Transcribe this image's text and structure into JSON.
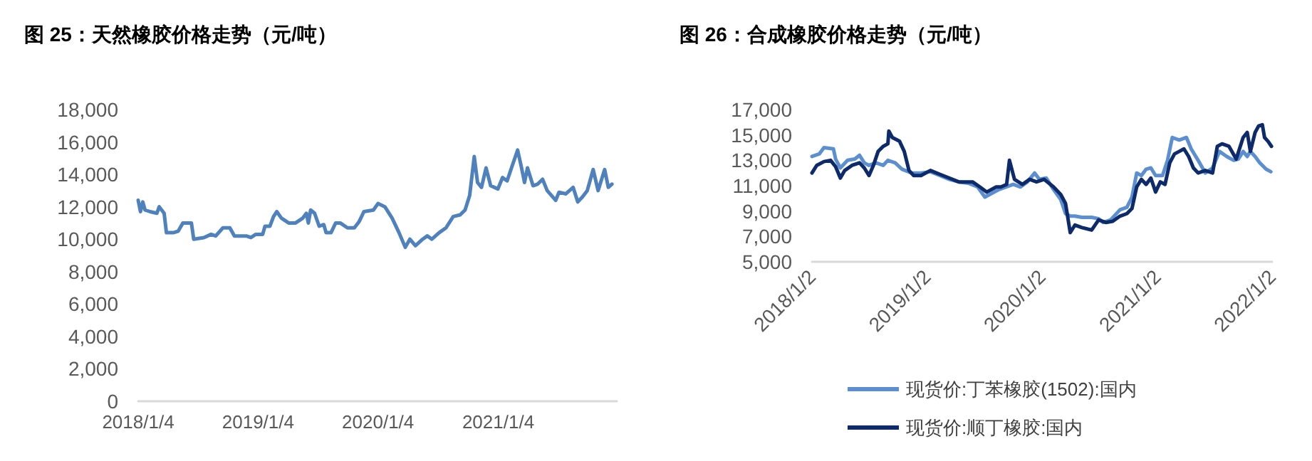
{
  "chart_data": [
    {
      "type": "line",
      "title": "图 25：天然橡胶价格走势（元/吨）",
      "marker": "none",
      "xlim": [
        "2018-01-04",
        "2021-12-31"
      ],
      "xticks": [
        {
          "value": "2018-01-04",
          "label": "2018/1/4"
        },
        {
          "value": "2019-01-04",
          "label": "2019/1/4"
        },
        {
          "value": "2020-01-04",
          "label": "2020/1/4"
        },
        {
          "value": "2021-01-04",
          "label": "2021/1/4"
        }
      ],
      "ylim": [
        0,
        18000
      ],
      "yticks": [
        {
          "value": 0,
          "label": "0"
        },
        {
          "value": 2000,
          "label": "2,000"
        },
        {
          "value": 4000,
          "label": "4,000"
        },
        {
          "value": 6000,
          "label": "6,000"
        },
        {
          "value": 8000,
          "label": "8,000"
        },
        {
          "value": 10000,
          "label": "10,000"
        },
        {
          "value": 12000,
          "label": "12,000"
        },
        {
          "value": 14000,
          "label": "14,000"
        },
        {
          "value": 16000,
          "label": "16,000"
        },
        {
          "value": 18000,
          "label": "18,000"
        }
      ],
      "x": [
        "2018-01-04",
        "2018-01-11",
        "2018-01-18",
        "2018-01-25",
        "2018-02-09",
        "2018-03-02",
        "2018-03-09",
        "2018-03-24",
        "2018-03-31",
        "2018-04-21",
        "2018-05-06",
        "2018-05-20",
        "2018-06-03",
        "2018-06-15",
        "2018-06-22",
        "2018-07-23",
        "2018-08-14",
        "2018-08-28",
        "2018-09-19",
        "2018-10-10",
        "2018-10-24",
        "2018-11-29",
        "2018-12-13",
        "2018-12-28",
        "2019-01-18",
        "2019-01-25",
        "2019-02-09",
        "2019-02-20",
        "2019-03-02",
        "2019-03-16",
        "2019-04-07",
        "2019-04-28",
        "2019-05-20",
        "2019-05-31",
        "2019-06-06",
        "2019-06-13",
        "2019-06-25",
        "2019-07-09",
        "2019-07-23",
        "2019-07-30",
        "2019-08-14",
        "2019-08-28",
        "2019-09-11",
        "2019-10-03",
        "2019-10-24",
        "2019-11-08",
        "2019-11-22",
        "2019-12-21",
        "2020-01-04",
        "2020-01-25",
        "2020-02-16",
        "2020-03-08",
        "2020-03-27",
        "2020-04-10",
        "2020-04-27",
        "2020-05-19",
        "2020-06-02",
        "2020-06-16",
        "2020-07-08",
        "2020-07-29",
        "2020-08-20",
        "2020-09-10",
        "2020-09-25",
        "2020-10-09",
        "2020-10-23",
        "2020-11-02",
        "2020-11-14",
        "2020-11-28",
        "2020-12-12",
        "2021-01-03",
        "2021-01-17",
        "2021-01-31",
        "2021-02-15",
        "2021-03-04",
        "2021-03-15",
        "2021-03-25",
        "2021-04-03",
        "2021-04-20",
        "2021-05-04",
        "2021-05-19",
        "2021-06-02",
        "2021-06-28",
        "2021-07-08",
        "2021-07-29",
        "2021-08-20",
        "2021-09-03",
        "2021-09-17",
        "2021-10-02",
        "2021-10-20",
        "2021-11-04",
        "2021-11-24",
        "2021-12-05",
        "2021-12-16"
      ],
      "series": [
        {
          "color": "#4f81bd",
          "values": [
            12400,
            11700,
            12300,
            11800,
            11700,
            11600,
            12000,
            11600,
            10400,
            10400,
            10500,
            11000,
            11000,
            11000,
            10000,
            10100,
            10300,
            10200,
            10700,
            10700,
            10200,
            10200,
            10100,
            10300,
            10300,
            10800,
            10800,
            11400,
            11700,
            11300,
            11000,
            11000,
            11300,
            11600,
            11000,
            11800,
            11600,
            10800,
            10900,
            10400,
            10400,
            11000,
            11000,
            10700,
            10700,
            11100,
            11700,
            11800,
            12200,
            12000,
            11300,
            10400,
            9500,
            10000,
            9600,
            10000,
            10200,
            10000,
            10400,
            10700,
            11400,
            11500,
            11800,
            12700,
            15100,
            13500,
            13200,
            14400,
            13300,
            13100,
            13800,
            13600,
            14500,
            15500,
            14500,
            13500,
            14400,
            13300,
            13400,
            13700,
            13000,
            12400,
            12900,
            12800,
            13200,
            12300,
            12600,
            13000,
            14300,
            13000,
            14300,
            13200,
            13400
          ]
        }
      ]
    },
    {
      "type": "line",
      "title": "图 26：合成橡胶价格走势（元/吨）",
      "marker": "none",
      "legend": "bottom",
      "xlim": [
        "2018-01-02",
        "2022-01-02"
      ],
      "xticks": [
        {
          "value": "2018-01-02",
          "label": "2018/1/2"
        },
        {
          "value": "2019-01-02",
          "label": "2019/1/2"
        },
        {
          "value": "2020-01-02",
          "label": "2020/1/2"
        },
        {
          "value": "2021-01-02",
          "label": "2021/1/2"
        },
        {
          "value": "2022-01-02",
          "label": "2022/1/2"
        }
      ],
      "ylim": [
        5000,
        17000
      ],
      "yticks": [
        {
          "value": 5000,
          "label": "5,000"
        },
        {
          "value": 7000,
          "label": "7,000"
        },
        {
          "value": 9000,
          "label": "9,000"
        },
        {
          "value": 11000,
          "label": "11,000"
        },
        {
          "value": 13000,
          "label": "13,000"
        },
        {
          "value": 15000,
          "label": "15,000"
        },
        {
          "value": 17000,
          "label": "17,000"
        }
      ],
      "series": [
        {
          "name": "现货价:丁苯橡胶(1502):国内",
          "color": "#5b8fd0",
          "x": [
            "2018-01-02",
            "2018-01-25",
            "2018-02-09",
            "2018-03-11",
            "2018-03-18",
            "2018-04-02",
            "2018-04-25",
            "2018-05-18",
            "2018-06-02",
            "2018-06-17",
            "2018-07-02",
            "2018-07-24",
            "2018-08-16",
            "2018-08-31",
            "2018-09-23",
            "2018-10-15",
            "2018-11-14",
            "2018-12-14",
            "2019-01-13",
            "2019-02-12",
            "2019-03-14",
            "2019-04-13",
            "2019-05-13",
            "2019-06-12",
            "2019-07-05",
            "2019-07-27",
            "2019-08-19",
            "2019-09-10",
            "2019-10-03",
            "2019-10-26",
            "2019-11-17",
            "2019-12-10",
            "2019-12-25",
            "2020-01-16",
            "2020-02-08",
            "2020-03-02",
            "2020-03-17",
            "2020-04-01",
            "2020-04-16",
            "2020-05-08",
            "2020-06-08",
            "2020-06-30",
            "2020-07-15",
            "2020-08-07",
            "2020-09-06",
            "2020-09-28",
            "2020-10-14",
            "2020-10-29",
            "2020-11-13",
            "2020-11-28",
            "2020-12-13",
            "2020-12-28",
            "2021-01-19",
            "2021-02-04",
            "2021-02-19",
            "2021-03-13",
            "2021-04-05",
            "2021-04-20",
            "2021-05-12",
            "2021-06-04",
            "2021-06-27",
            "2021-07-19",
            "2021-08-11",
            "2021-09-02",
            "2021-09-17",
            "2021-10-02",
            "2021-10-15",
            "2021-10-25",
            "2021-11-09",
            "2021-11-24",
            "2021-12-14",
            "2021-12-29"
          ],
          "values": [
            13300,
            13500,
            14000,
            13900,
            13100,
            12400,
            13000,
            13100,
            13400,
            12800,
            12600,
            12800,
            12600,
            13000,
            12800,
            12300,
            12000,
            12000,
            12100,
            11800,
            11500,
            11300,
            11200,
            10900,
            10100,
            10400,
            10700,
            10900,
            11100,
            10900,
            11300,
            12000,
            11500,
            11600,
            10700,
            9900,
            8800,
            8600,
            8600,
            8500,
            8500,
            8400,
            8100,
            8300,
            9100,
            9300,
            10100,
            12000,
            11800,
            12300,
            12400,
            11800,
            11800,
            13000,
            14800,
            14600,
            14800,
            13900,
            13000,
            12000,
            12400,
            13700,
            13300,
            13000,
            13100,
            13700,
            13300,
            13700,
            13300,
            12800,
            12300,
            12100
          ]
        },
        {
          "name": "现货价:顺丁橡胶:国内",
          "color": "#0d2a6b",
          "x": [
            "2018-01-02",
            "2018-01-17",
            "2018-02-09",
            "2018-03-02",
            "2018-03-18",
            "2018-04-02",
            "2018-04-16",
            "2018-05-09",
            "2018-06-02",
            "2018-06-17",
            "2018-07-02",
            "2018-07-16",
            "2018-07-31",
            "2018-08-16",
            "2018-08-31",
            "2018-09-03",
            "2018-09-14",
            "2018-10-07",
            "2018-10-22",
            "2018-11-06",
            "2018-11-21",
            "2018-12-14",
            "2019-01-13",
            "2019-02-12",
            "2019-03-14",
            "2019-04-13",
            "2019-05-04",
            "2019-05-27",
            "2019-06-19",
            "2019-07-11",
            "2019-08-10",
            "2019-08-25",
            "2019-09-12",
            "2019-09-21",
            "2019-10-07",
            "2019-11-01",
            "2019-11-24",
            "2019-12-16",
            "2020-01-09",
            "2020-02-08",
            "2020-03-02",
            "2020-03-17",
            "2020-04-01",
            "2020-04-16",
            "2020-05-08",
            "2020-06-08",
            "2020-06-30",
            "2020-07-23",
            "2020-08-14",
            "2020-09-06",
            "2020-09-28",
            "2020-10-14",
            "2020-10-29",
            "2020-11-13",
            "2020-11-28",
            "2020-12-13",
            "2020-12-28",
            "2021-01-12",
            "2021-01-27",
            "2021-02-11",
            "2021-02-26",
            "2021-03-13",
            "2021-03-28",
            "2021-04-12",
            "2021-04-27",
            "2021-05-12",
            "2021-06-04",
            "2021-06-27",
            "2021-07-12",
            "2021-07-27",
            "2021-08-18",
            "2021-09-10",
            "2021-10-02",
            "2021-10-15",
            "2021-10-25",
            "2021-11-09",
            "2021-11-20",
            "2021-12-02",
            "2021-12-09",
            "2021-12-20",
            "2021-12-31"
          ],
          "values": [
            12000,
            12600,
            12900,
            13000,
            12500,
            11600,
            12200,
            12600,
            12800,
            12400,
            11800,
            12600,
            13700,
            14100,
            14300,
            15300,
            14800,
            14500,
            13700,
            12200,
            11800,
            11800,
            12200,
            11900,
            11600,
            11300,
            11300,
            11300,
            10900,
            10500,
            10900,
            10900,
            11100,
            13000,
            11500,
            11100,
            11500,
            11300,
            11500,
            10900,
            10300,
            9600,
            7300,
            7900,
            7700,
            7500,
            8300,
            8100,
            8200,
            8600,
            8800,
            9200,
            10900,
            11500,
            11100,
            11600,
            10500,
            11300,
            11100,
            12800,
            13500,
            13700,
            13900,
            13300,
            12400,
            12000,
            12200,
            12000,
            14100,
            14300,
            14100,
            13100,
            14800,
            15200,
            13700,
            15200,
            15700,
            15800,
            14800,
            14500,
            14100
          ]
        }
      ]
    }
  ]
}
